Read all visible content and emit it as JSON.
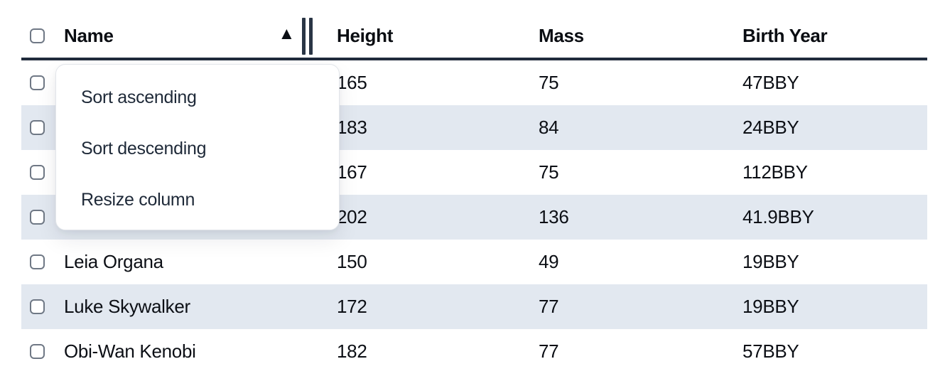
{
  "table": {
    "columns": {
      "select": "",
      "name": {
        "label": "Name",
        "sort": "ascending"
      },
      "height": {
        "label": "Height"
      },
      "mass": {
        "label": "Mass"
      },
      "birth_year": {
        "label": "Birth Year"
      }
    },
    "rows": [
      {
        "name": "",
        "height": "165",
        "mass": "75",
        "birth_year": "47BBY"
      },
      {
        "name": "",
        "height": "183",
        "mass": "84",
        "birth_year": "24BBY"
      },
      {
        "name": "",
        "height": "167",
        "mass": "75",
        "birth_year": "112BBY"
      },
      {
        "name": "",
        "height": "202",
        "mass": "136",
        "birth_year": "41.9BBY"
      },
      {
        "name": "Leia Organa",
        "height": "150",
        "mass": "49",
        "birth_year": "19BBY"
      },
      {
        "name": "Luke Skywalker",
        "height": "172",
        "mass": "77",
        "birth_year": "19BBY"
      },
      {
        "name": "Obi-Wan Kenobi",
        "height": "182",
        "mass": "77",
        "birth_year": "57BBY"
      }
    ]
  },
  "column_menu": {
    "items": [
      {
        "label": "Sort ascending"
      },
      {
        "label": "Sort descending"
      },
      {
        "label": "Resize column"
      }
    ]
  },
  "icons": {
    "sort_ascending": "▲",
    "column_resize": "‖"
  },
  "colors": {
    "stripe": "#e2e8f0",
    "header_border": "#202b3c",
    "menu_text": "#1e2938",
    "cell_text": "#0c0f15",
    "checkbox_border": "#6f7885",
    "menu_border": "#e2e5ea",
    "background": "#ffffff"
  }
}
